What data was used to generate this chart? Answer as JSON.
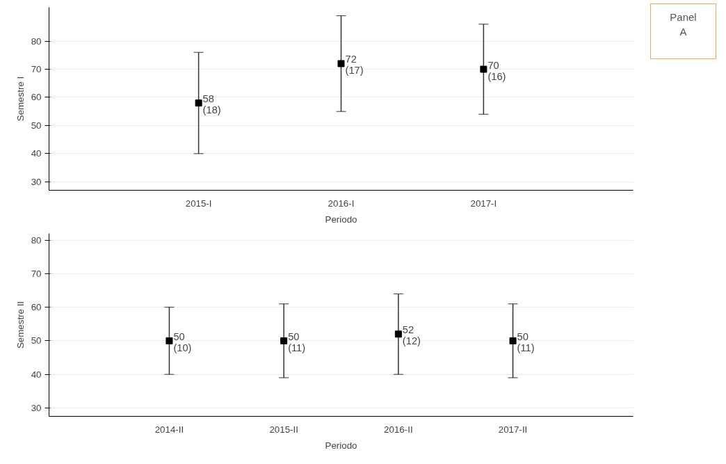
{
  "chart_data": [
    {
      "type": "scatter",
      "ylabel": "Semestre I",
      "xlabel": "Periodo",
      "categories": [
        "2015-I",
        "2016-I",
        "2017-I"
      ],
      "series": [
        {
          "color": "#000000",
          "values": [
            58,
            72,
            70
          ],
          "errors": [
            18,
            17,
            16
          ],
          "value_labels": [
            "58\n(18)",
            "72\n(17)",
            "70\n(16)"
          ]
        }
      ],
      "ylim": [
        27,
        92
      ],
      "yticks": [
        30,
        40,
        50,
        60,
        70,
        80
      ],
      "grid": "y",
      "marker": "square",
      "annotations": [
        "Panel\nA"
      ]
    },
    {
      "type": "scatter",
      "ylabel": "Semestre II",
      "xlabel": "Periodo",
      "categories": [
        "2014-II",
        "2015-II",
        "2016-II",
        "2017-II"
      ],
      "series": [
        {
          "color": "#000000",
          "values": [
            50,
            50,
            52,
            50
          ],
          "errors": [
            10,
            11,
            12,
            11
          ],
          "value_labels": [
            "50\n(10)",
            "50\n(11)",
            "52\n(12)",
            "50\n(11)"
          ]
        }
      ],
      "ylim": [
        27.5,
        82
      ],
      "yticks": [
        30,
        40,
        50,
        60,
        70,
        80
      ],
      "grid": "y",
      "marker": "square"
    }
  ]
}
